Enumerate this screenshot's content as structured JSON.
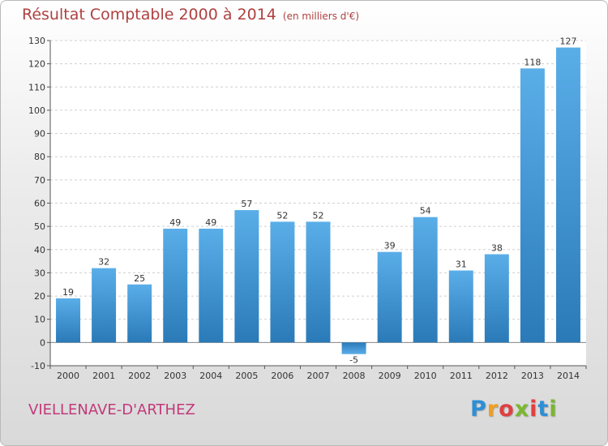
{
  "header": {
    "title": "Résultat Comptable 2000 à 2014",
    "subtitle": "(en milliers d'€)"
  },
  "footer": {
    "location": "VIELLENAVE-D'ARTHEZ",
    "logo_letters": [
      "P",
      "r",
      "o",
      "x",
      "i",
      "t",
      "i"
    ],
    "logo_colors": [
      "#2d8fd6",
      "#f0a020",
      "#e04040",
      "#7ab82e",
      "#e04040",
      "#2d8fd6",
      "#7ab82e"
    ]
  },
  "chart_data": {
    "type": "bar",
    "categories": [
      "2000",
      "2001",
      "2002",
      "2003",
      "2004",
      "2005",
      "2006",
      "2007",
      "2008",
      "2009",
      "2010",
      "2011",
      "2012",
      "2013",
      "2014"
    ],
    "values": [
      19,
      32,
      25,
      49,
      49,
      57,
      52,
      52,
      -5,
      39,
      54,
      31,
      38,
      118,
      127
    ],
    "data_labels": [
      "19",
      "32",
      "25",
      "49",
      "49",
      "57",
      "52",
      "52",
      "-5",
      "39",
      "54",
      "31",
      "38",
      "118",
      "127"
    ],
    "ylim": [
      -10,
      130
    ],
    "yticks": [
      -10,
      0,
      10,
      20,
      30,
      40,
      50,
      60,
      70,
      80,
      90,
      100,
      110,
      120,
      130
    ],
    "ytick_labels": [
      "-10",
      "0",
      "10",
      "20",
      "30",
      "40",
      "50",
      "60",
      "70",
      "80",
      "90",
      "100",
      "110",
      "120",
      "130"
    ],
    "grid": "horizontal dashed",
    "bar_color_top": "#5aaee8",
    "bar_color_bottom": "#2a7ab8",
    "plot_background": "#ffffff",
    "title": "Résultat Comptable 2000 à 2014",
    "xlabel": "",
    "ylabel": ""
  }
}
